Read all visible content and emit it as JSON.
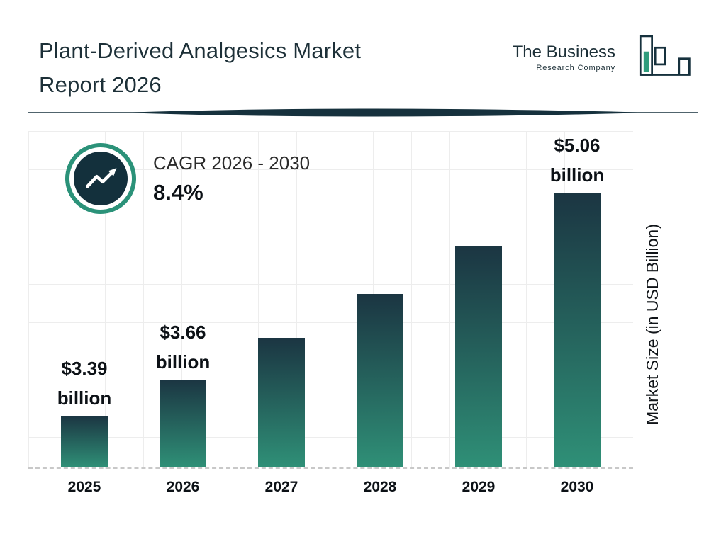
{
  "header": {
    "title_line1": "Plant-Derived Analgesics Market",
    "title_line2": "Report 2026",
    "logo": {
      "name_line1": "The Business",
      "name_line2": "Research Company"
    }
  },
  "cagr": {
    "label": "CAGR 2026 - 2030",
    "value": "8.4%",
    "icon": "trend-up-arrow-icon"
  },
  "chart_data": {
    "type": "bar",
    "title": "Plant-Derived Analgesics Market Report 2026",
    "categories": [
      "2025",
      "2026",
      "2027",
      "2028",
      "2029",
      "2030"
    ],
    "values": [
      3.39,
      3.66,
      3.97,
      4.3,
      4.66,
      5.06
    ],
    "value_labels": [
      {
        "amount": "$3.39",
        "unit": "billion"
      },
      {
        "amount": "$3.66",
        "unit": "billion"
      },
      null,
      null,
      null,
      {
        "amount": "$5.06",
        "unit": "billion"
      }
    ],
    "xlabel": "",
    "ylabel": "Market Size (in USD Billion)",
    "ylim": [
      3.0,
      5.06
    ],
    "grid": true,
    "legend": false,
    "bar_gradient": [
      "#1b3542",
      "#2f9077"
    ]
  },
  "colors": {
    "accent_teal": "#2b9279",
    "dark_navy": "#13303c",
    "title_text": "#1d3038",
    "grid": "#ededed",
    "baseline_dash": "#c8c8c8"
  }
}
